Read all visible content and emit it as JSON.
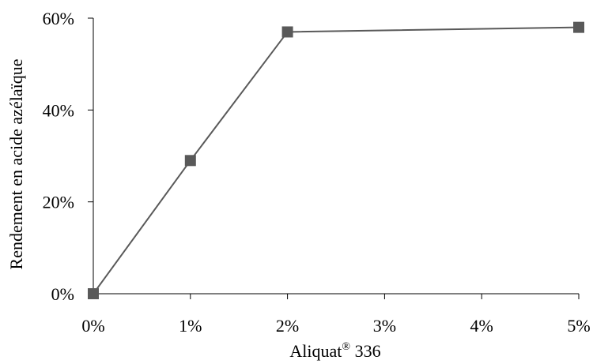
{
  "chart_data": {
    "type": "line",
    "categories": [
      "0%",
      "1%",
      "2%",
      "3%",
      "4%",
      "5%"
    ],
    "y_tick_labels": [
      "0%",
      "20%",
      "40%",
      "60%"
    ],
    "ylim": [
      0,
      60
    ],
    "y_ticks": [
      0,
      20,
      40,
      60
    ],
    "xlabel": {
      "main": "Aliquat",
      "sup": "®",
      "rest": " 336"
    },
    "ylabel": "Rendement en acide azélaïque",
    "grid": false,
    "series": [
      {
        "x": [
          "0%",
          "1%",
          "2%",
          "5%"
        ],
        "values": [
          0,
          29,
          57,
          58
        ],
        "color": "#595959",
        "marker": "square"
      }
    ]
  }
}
